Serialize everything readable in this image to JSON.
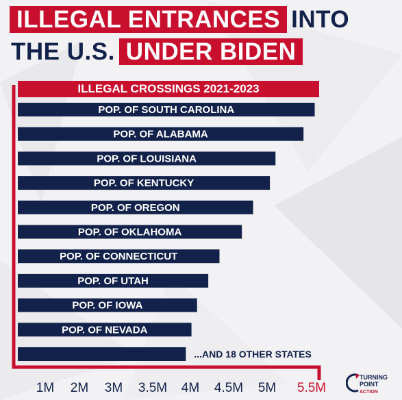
{
  "header": {
    "line1_red": "ILLEGAL ENTRANCES",
    "line1_plain": "INTO",
    "line2_plain": "THE U.S.",
    "line2_red": "UNDER BIDEN"
  },
  "chart_data": {
    "type": "bar",
    "title": "ILLEGAL CROSSINGS 2021-2023",
    "orientation": "horizontal",
    "categories": [
      "POP. OF SOUTH CAROLINA",
      "POP. OF ALABAMA",
      "POP. OF LOUISIANA",
      "POP. OF KENTUCKY",
      "POP. OF OREGON",
      "POP. OF OKLAHOMA",
      "POP. OF CONNECTICUT",
      "POP. OF UTAH",
      "POP. OF IOWA",
      "POP. OF NEVADA",
      "...AND 18 OTHER STATES"
    ],
    "values": [
      5.3,
      5.1,
      4.6,
      4.5,
      4.2,
      4.0,
      3.6,
      3.4,
      3.2,
      3.1,
      3.0
    ],
    "xticks": [
      "1M",
      "2M",
      "3M",
      "3.5M",
      "4M",
      "4.5M",
      "5M",
      "5.5M"
    ],
    "highlight_tick": "5.5M",
    "colors": {
      "bar": "#13224a",
      "accent": "#c8102e"
    },
    "grid": false
  },
  "logo": {
    "line1": "TURNING",
    "line2": "POINT",
    "line3": "ACTION"
  }
}
